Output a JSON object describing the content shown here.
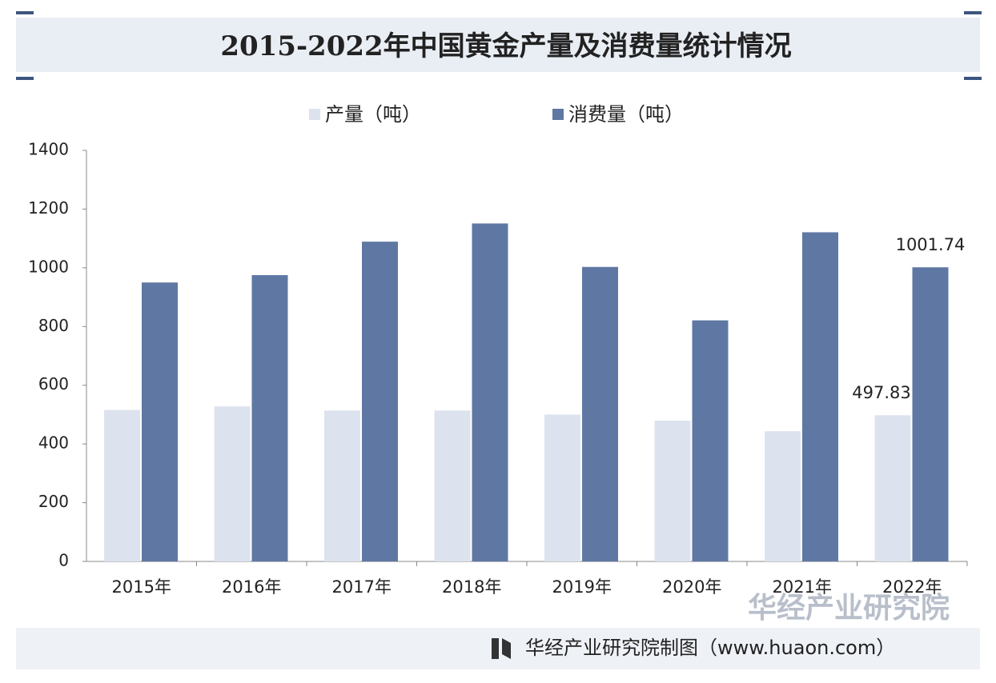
{
  "chart_data": {
    "type": "bar",
    "title": "2015-2022年中国黄金产量及消费量统计情况",
    "categories": [
      "2015年",
      "2016年",
      "2017年",
      "2018年",
      "2019年",
      "2020年",
      "2021年",
      "2022年"
    ],
    "series": [
      {
        "name": "产量（吨）",
        "color": "#dde3ee",
        "values": [
          515.88,
          528.04,
          513.85,
          513.9,
          500.17,
          479.49,
          443.56,
          497.83
        ],
        "value_labels": [
          null,
          null,
          null,
          null,
          null,
          null,
          null,
          "497.83"
        ]
      },
      {
        "name": "消费量（吨）",
        "color": "#5f78a3",
        "values": [
          950,
          975,
          1089,
          1151,
          1003,
          821,
          1121,
          1001.74
        ],
        "value_labels": [
          null,
          null,
          null,
          null,
          null,
          null,
          null,
          "1001.74"
        ]
      }
    ],
    "ylim": [
      0,
      1400
    ],
    "yticks": [
      0,
      200,
      400,
      600,
      800,
      1000,
      1200,
      1400
    ],
    "legend": "top",
    "source": "华经产业研究院制图（www.huaon.com）",
    "watermark": "华经产业研究院"
  }
}
